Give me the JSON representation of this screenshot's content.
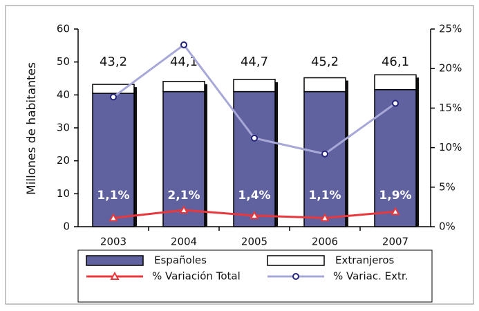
{
  "chart_data": {
    "type": "bar",
    "stacked": true,
    "y_label": "Millones de habitantes",
    "categories": [
      "2003",
      "2004",
      "2005",
      "2006",
      "2007"
    ],
    "series": [
      {
        "name": "Españoles",
        "color": "#6062a0",
        "values": [
          40.5,
          41.0,
          41.0,
          41.0,
          41.6
        ]
      },
      {
        "name": "Extranjeros",
        "color": "#ffffff",
        "values": [
          2.7,
          3.1,
          3.7,
          4.2,
          4.5
        ]
      },
      {
        "name": "% Variación Total",
        "type": "line",
        "axis": "y2",
        "color": "#e8383d",
        "marker": "triangle",
        "values": [
          1.1,
          2.1,
          1.4,
          1.1,
          1.9
        ],
        "value_labels": [
          "1,1%",
          "2,1%",
          "1,4%",
          "1,1%",
          "1,9%"
        ]
      },
      {
        "name": "% Variac. Extr.",
        "type": "line",
        "axis": "y2",
        "color": "#a8a8d8",
        "marker": "circle",
        "values": [
          16.4,
          23.0,
          11.2,
          9.2,
          15.6
        ]
      }
    ],
    "total_labels": [
      "43,2",
      "44,1",
      "44,7",
      "45,2",
      "46,1"
    ],
    "ylim": [
      0,
      60
    ],
    "yticks": [
      0,
      10,
      20,
      30,
      40,
      50,
      60
    ],
    "y2lim": [
      0,
      25
    ],
    "y2ticks": [
      {
        "value": 0,
        "label": "0%"
      },
      {
        "value": 5,
        "label": "5%"
      },
      {
        "value": 10,
        "label": "10%"
      },
      {
        "value": 15,
        "label": "15%"
      },
      {
        "value": 20,
        "label": "20%"
      },
      {
        "value": 25,
        "label": "25%"
      }
    ]
  }
}
